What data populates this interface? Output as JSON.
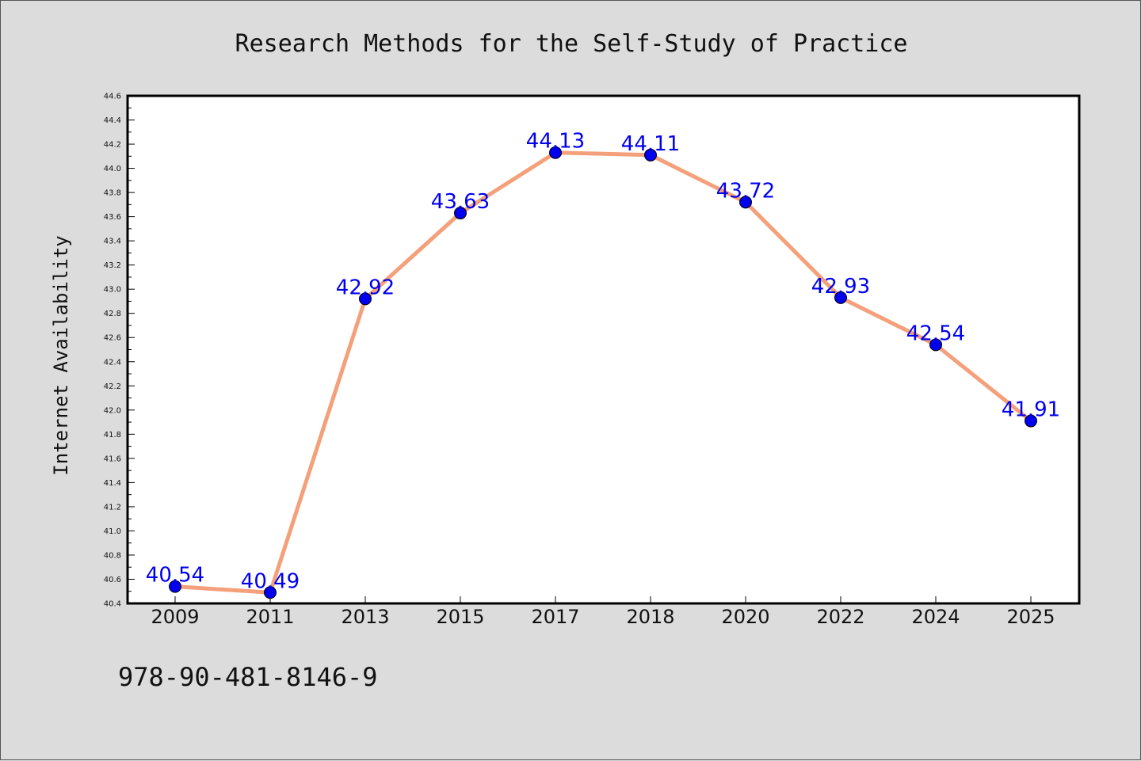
{
  "chart_data": {
    "type": "line",
    "title": "Research Methods for the Self-Study of Practice",
    "xlabel": "",
    "ylabel": "Internet Availability",
    "categories": [
      "2009",
      "2011",
      "2013",
      "2015",
      "2017",
      "2018",
      "2020",
      "2022",
      "2024",
      "2025"
    ],
    "series": [
      {
        "values": [
          40.54,
          40.49,
          42.92,
          43.63,
          44.13,
          44.11,
          43.72,
          42.93,
          42.54,
          41.91
        ]
      }
    ],
    "data_labels": [
      "40.54",
      "40.49",
      "42.92",
      "43.63",
      "44.13",
      "44.11",
      "43.72",
      "42.93",
      "42.54",
      "41.91"
    ],
    "ylim": [
      40.4,
      44.6
    ],
    "y_ticks": [
      "40.4",
      "40.6",
      "40.8",
      "41.0",
      "41.2",
      "41.4",
      "41.6",
      "41.8",
      "42.0",
      "42.2",
      "42.4",
      "42.6",
      "42.8",
      "43.0",
      "43.2",
      "43.4",
      "43.6",
      "43.8",
      "44.0",
      "44.2",
      "44.4",
      "44.6"
    ],
    "grid": false,
    "line_color": "#f4a07a",
    "marker_color": "#0000ee",
    "label_color": "#0000ee"
  },
  "caption": "978-90-481-8146-9",
  "colors": {
    "background": "#dcdcdc",
    "plot_background": "#ffffff"
  }
}
